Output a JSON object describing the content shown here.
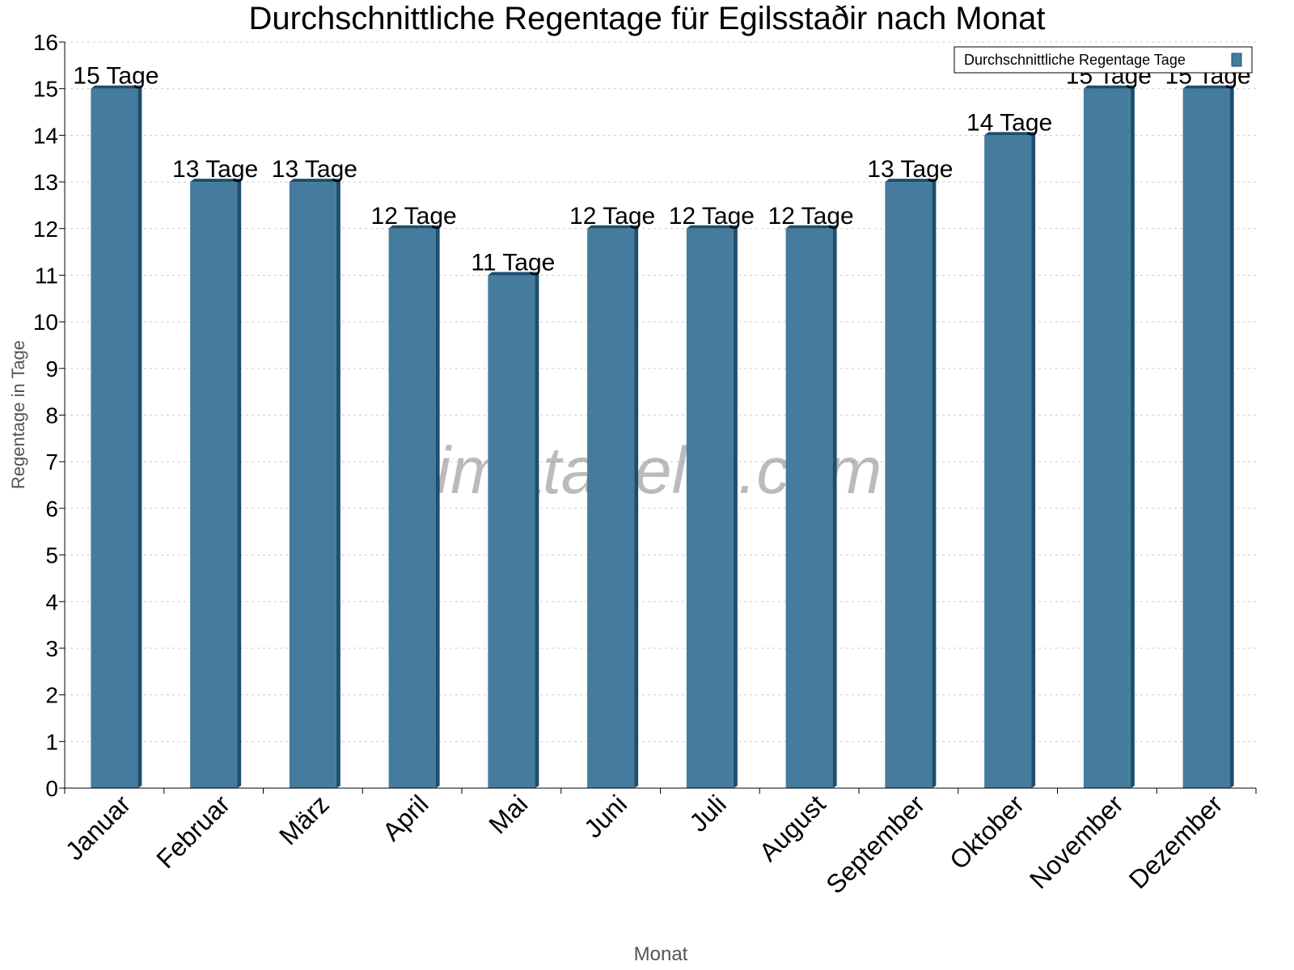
{
  "chart_data": {
    "type": "bar",
    "title": "Durchschnittliche Regentage für Egilsstaðir nach Monat",
    "xlabel": "Monat",
    "ylabel": "Regentage in Tage",
    "ylim": [
      0,
      16
    ],
    "yticks": [
      0,
      1,
      2,
      3,
      4,
      5,
      6,
      7,
      8,
      9,
      10,
      11,
      12,
      13,
      14,
      15,
      16
    ],
    "grid": true,
    "legend_position": "top-right",
    "categories": [
      "Januar",
      "Februar",
      "März",
      "April",
      "Mai",
      "Juni",
      "Juli",
      "August",
      "September",
      "Oktober",
      "November",
      "Dezember"
    ],
    "series": [
      {
        "name": "Durchschnittliche Regentage Tage",
        "values": [
          15,
          13,
          13,
          12,
          11,
          12,
          12,
          12,
          13,
          14,
          15,
          15
        ],
        "color": "#457b9d",
        "shade_color": "#1d4e6e"
      }
    ],
    "data_label_suffix": " Tage",
    "watermark": "klimatabelle.com"
  }
}
